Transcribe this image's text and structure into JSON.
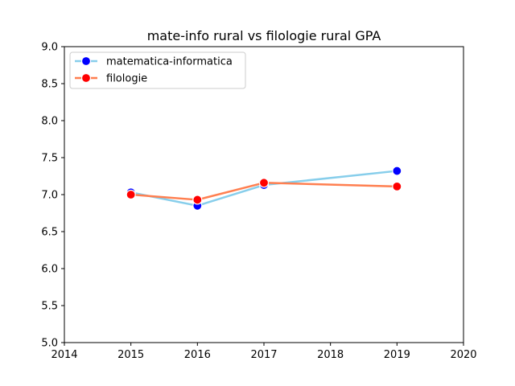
{
  "chart_data": {
    "type": "line",
    "title": "mate-info rural vs filologie rural GPA",
    "xlabel": "",
    "ylabel": "",
    "xlim": [
      2014,
      2020
    ],
    "ylim": [
      5.0,
      9.0
    ],
    "xticks": [
      "2014",
      "2015",
      "2016",
      "2017",
      "2018",
      "2019",
      "2020"
    ],
    "yticks": [
      "5.0",
      "5.5",
      "6.0",
      "6.5",
      "7.0",
      "7.5",
      "8.0",
      "8.5",
      "9.0"
    ],
    "grid": false,
    "legend_position": "top-left",
    "series": [
      {
        "name": "matematica-informatica",
        "line_color": "#87ceeb",
        "marker_color": "#0000ff",
        "x": [
          2015,
          2016,
          2017,
          2019
        ],
        "y": [
          7.03,
          6.85,
          7.13,
          7.32
        ]
      },
      {
        "name": "filologie",
        "line_color": "#ff7f50",
        "marker_color": "#ff0000",
        "x": [
          2015,
          2016,
          2017,
          2019
        ],
        "y": [
          7.0,
          6.93,
          7.16,
          7.11
        ]
      }
    ]
  }
}
